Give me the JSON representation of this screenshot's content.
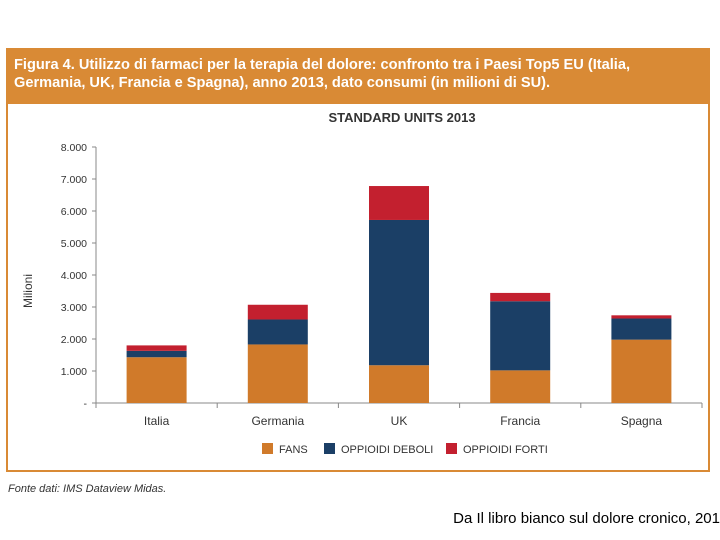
{
  "figure": {
    "title": "Figura 4. Utilizzo di farmaci per la terapia del dolore: confronto tra i Paesi Top5 EU (Italia, Germania, UK, Francia e Spagna), anno 2013, dato consumi (in milioni di SU).",
    "source": "Fonte dati: IMS Dataview Midas.",
    "caption": "Da Il libro bianco sul dolore cronico, 201"
  },
  "colors": {
    "header": "#d98a35",
    "fans": "#d07a2a",
    "deboli": "#1b3f66",
    "forti": "#c3202f"
  },
  "chart_data": {
    "type": "bar",
    "stacked": true,
    "title": "STANDARD UNITS 2013",
    "ylabel": "Milioni",
    "xlabel": "",
    "ylim": [
      0,
      8000
    ],
    "yticks": [
      0,
      1000,
      2000,
      3000,
      4000,
      5000,
      6000,
      7000,
      8000
    ],
    "ytick_labels": [
      "-",
      "1.000",
      "2.000",
      "3.000",
      "4.000",
      "5.000",
      "6.000",
      "7.000",
      "8.000"
    ],
    "categories": [
      "Italia",
      "Germania",
      "UK",
      "Francia",
      "Spagna"
    ],
    "series": [
      {
        "name": "FANS",
        "color": "#d07a2a",
        "values": [
          1430,
          1830,
          1180,
          1020,
          1980
        ]
      },
      {
        "name": "OPPIOIDI DEBOLI",
        "color": "#1b3f66",
        "values": [
          200,
          780,
          4540,
          2160,
          660
        ]
      },
      {
        "name": "OPPIOIDI FORTI",
        "color": "#c3202f",
        "values": [
          170,
          460,
          1060,
          260,
          100
        ]
      }
    ],
    "legend": "bottom-center"
  }
}
